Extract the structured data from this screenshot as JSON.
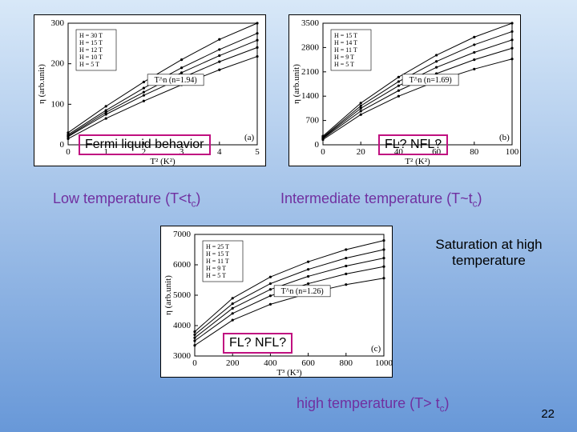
{
  "chart_a": {
    "panel_label": "(a)",
    "xlabel": "T² (K²)",
    "ylabel": "η (arb.unit)",
    "xlim": [
      0,
      5
    ],
    "xtick_step": 1,
    "ylim": [
      0,
      300
    ],
    "ytick_step": 100,
    "power_box": "T^n (n=1.94)",
    "legend": [
      "H = 30 T",
      "H = 15 T",
      "H = 12 T",
      "H = 10 T",
      "H = 5 T"
    ],
    "curves": [
      {
        "color": "#000",
        "pts": [
          [
            0,
            30
          ],
          [
            1,
            95
          ],
          [
            2,
            155
          ],
          [
            3,
            210
          ],
          [
            4,
            260
          ],
          [
            5,
            300
          ]
        ]
      },
      {
        "color": "#000",
        "pts": [
          [
            0,
            25
          ],
          [
            1,
            85
          ],
          [
            2,
            140
          ],
          [
            3,
            190
          ],
          [
            4,
            235
          ],
          [
            5,
            275
          ]
        ]
      },
      {
        "color": "#000",
        "pts": [
          [
            0,
            22
          ],
          [
            1,
            80
          ],
          [
            2,
            130
          ],
          [
            3,
            178
          ],
          [
            4,
            220
          ],
          [
            5,
            258
          ]
        ]
      },
      {
        "color": "#000",
        "pts": [
          [
            0,
            20
          ],
          [
            1,
            75
          ],
          [
            2,
            122
          ],
          [
            3,
            165
          ],
          [
            4,
            205
          ],
          [
            5,
            240
          ]
        ]
      },
      {
        "color": "#000",
        "pts": [
          [
            0,
            15
          ],
          [
            1,
            65
          ],
          [
            2,
            108
          ],
          [
            3,
            148
          ],
          [
            4,
            185
          ],
          [
            5,
            218
          ]
        ]
      }
    ],
    "bg": "#ffffff"
  },
  "chart_b": {
    "panel_label": "(b)",
    "xlabel": "T² (K²)",
    "ylabel": "η (arb.unit)",
    "xlim": [
      0,
      100
    ],
    "xtick_step": 20,
    "ylim": [
      0,
      3500
    ],
    "ytick_step": 700,
    "power_box": "T^n (n=1.69)",
    "legend": [
      "H = 15 T",
      "H = 14 T",
      "H = 11 T",
      "H = 9 T",
      "H = 5 T"
    ],
    "curves": [
      {
        "color": "#000",
        "pts": [
          [
            0,
            250
          ],
          [
            20,
            1200
          ],
          [
            40,
            1950
          ],
          [
            60,
            2580
          ],
          [
            80,
            3100
          ],
          [
            100,
            3500
          ]
        ]
      },
      {
        "color": "#000",
        "pts": [
          [
            0,
            220
          ],
          [
            20,
            1120
          ],
          [
            40,
            1820
          ],
          [
            60,
            2400
          ],
          [
            80,
            2880
          ],
          [
            100,
            3260
          ]
        ]
      },
      {
        "color": "#000",
        "pts": [
          [
            0,
            200
          ],
          [
            20,
            1050
          ],
          [
            40,
            1700
          ],
          [
            60,
            2230
          ],
          [
            80,
            2660
          ],
          [
            100,
            3020
          ]
        ]
      },
      {
        "color": "#000",
        "pts": [
          [
            0,
            180
          ],
          [
            20,
            970
          ],
          [
            40,
            1560
          ],
          [
            60,
            2050
          ],
          [
            80,
            2450
          ],
          [
            100,
            2780
          ]
        ]
      },
      {
        "color": "#000",
        "pts": [
          [
            0,
            150
          ],
          [
            20,
            870
          ],
          [
            40,
            1400
          ],
          [
            60,
            1830
          ],
          [
            80,
            2180
          ],
          [
            100,
            2470
          ]
        ]
      }
    ],
    "bg": "#ffffff"
  },
  "chart_c": {
    "panel_label": "(c)",
    "xlabel": "T³ (K³)",
    "ylabel": "η (arb.unit)",
    "xlim": [
      0,
      1000
    ],
    "xtick_step": 200,
    "ylim": [
      3000,
      7000
    ],
    "ytick_step": 1000,
    "power_box": "T^n (n=1.26)",
    "legend": [
      "H = 25 T",
      "H = 15 T",
      "H = 11 T",
      "H = 9 T",
      "H = 5 T"
    ],
    "curves": [
      {
        "color": "#000",
        "pts": [
          [
            0,
            3800
          ],
          [
            200,
            4900
          ],
          [
            400,
            5600
          ],
          [
            600,
            6100
          ],
          [
            800,
            6500
          ],
          [
            1000,
            6800
          ]
        ]
      },
      {
        "color": "#000",
        "pts": [
          [
            0,
            3700
          ],
          [
            200,
            4720
          ],
          [
            400,
            5380
          ],
          [
            600,
            5850
          ],
          [
            800,
            6220
          ],
          [
            1000,
            6500
          ]
        ]
      },
      {
        "color": "#000",
        "pts": [
          [
            0,
            3600
          ],
          [
            200,
            4570
          ],
          [
            400,
            5190
          ],
          [
            600,
            5620
          ],
          [
            800,
            5960
          ],
          [
            1000,
            6220
          ]
        ]
      },
      {
        "color": "#000",
        "pts": [
          [
            0,
            3500
          ],
          [
            200,
            4400
          ],
          [
            400,
            4980
          ],
          [
            600,
            5380
          ],
          [
            800,
            5700
          ],
          [
            1000,
            5940
          ]
        ]
      },
      {
        "color": "#000",
        "pts": [
          [
            0,
            3350
          ],
          [
            200,
            4180
          ],
          [
            400,
            4700
          ],
          [
            600,
            5060
          ],
          [
            800,
            5350
          ],
          [
            1000,
            5560
          ]
        ]
      }
    ],
    "bg": "#ffffff"
  },
  "labels": {
    "fermi": "Fermi liquid behavior",
    "fl_nfl_top": "FL? NFL?",
    "fl_nfl_bottom": "FL? NFL?",
    "low_temp_pre": "Low temperature (T<t",
    "low_temp_sub": "c",
    "low_temp_post": ")",
    "inter_temp_pre": "Intermediate temperature (T~t",
    "inter_temp_sub": "c",
    "inter_temp_post": ")",
    "saturation": "Saturation at high temperature",
    "high_temp_pre": "high temperature (T> t",
    "high_temp_sub": "c",
    "high_temp_post": ")",
    "slide_number": "22"
  }
}
